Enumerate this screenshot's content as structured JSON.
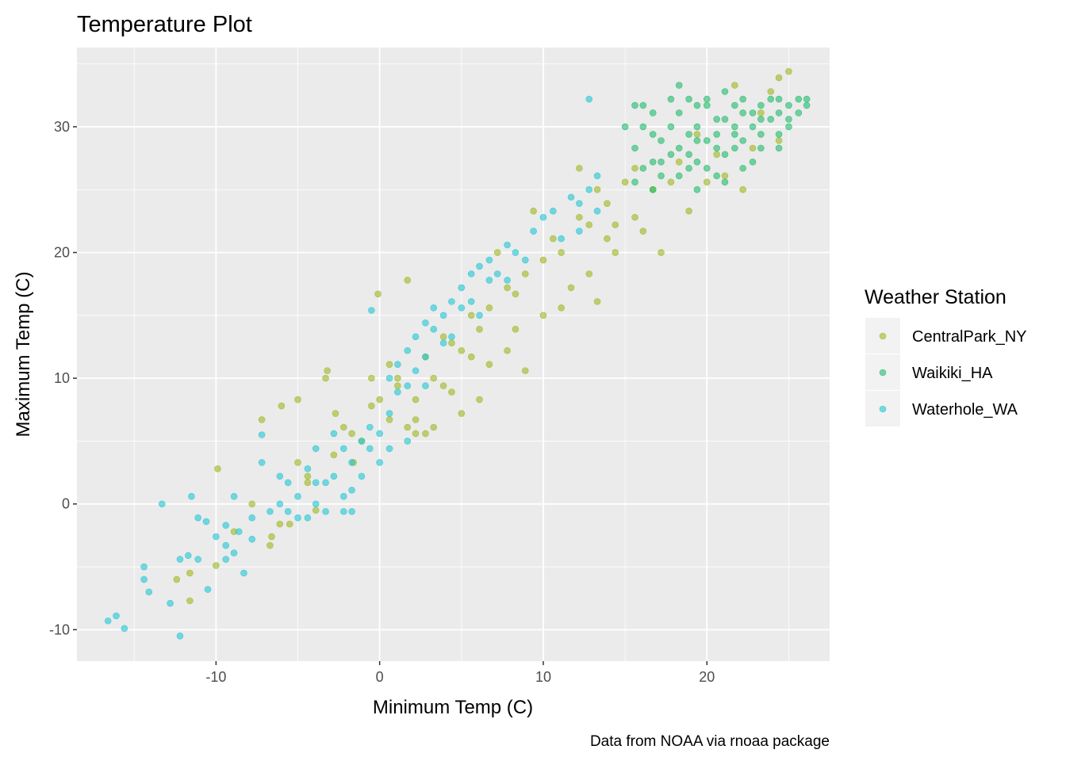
{
  "chart_data": {
    "type": "scatter",
    "title": "Temperature Plot",
    "xlabel": "Minimum Temp (C)",
    "ylabel": "Maximum Temp (C)",
    "caption": "Data from NOAA via rnoaa package",
    "xlim": [
      -18.5,
      27.5
    ],
    "ylim": [
      -12.5,
      36.3
    ],
    "x_ticks": [
      -10,
      0,
      10,
      20
    ],
    "y_ticks": [
      -10,
      0,
      10,
      20,
      30
    ],
    "x_tick_labels": [
      "-10",
      "0",
      "10",
      "20"
    ],
    "y_tick_labels": [
      "-10",
      "0",
      "10",
      "20",
      "30"
    ],
    "grid": true,
    "panel_background": "#ebebeb",
    "legend": {
      "title": "Weather Station",
      "placement": "right",
      "entries": [
        {
          "label": "CentralPark_NY",
          "color": "#9eb51f"
        },
        {
          "label": "Waikiki_HA",
          "color": "#1fba6a"
        },
        {
          "label": "Waterhole_WA",
          "color": "#20c6d4"
        }
      ]
    },
    "series": [
      {
        "name": "CentralPark_NY",
        "color": "#9eb51f",
        "points": [
          [
            -9.9,
            2.8
          ],
          [
            -12.4,
            -6.0
          ],
          [
            -11.6,
            -5.5
          ],
          [
            -11.6,
            -7.7
          ],
          [
            -10.0,
            -4.9
          ],
          [
            -7.2,
            6.7
          ],
          [
            -6.6,
            -2.6
          ],
          [
            -6.1,
            -1.6
          ],
          [
            -6.0,
            7.8
          ],
          [
            -5.5,
            -1.6
          ],
          [
            -5.0,
            8.3
          ],
          [
            -5.0,
            3.3
          ],
          [
            -4.4,
            2.2
          ],
          [
            -3.9,
            -0.5
          ],
          [
            -3.3,
            10.0
          ],
          [
            -3.2,
            10.6
          ],
          [
            -2.7,
            7.2
          ],
          [
            -2.2,
            6.1
          ],
          [
            -1.6,
            3.3
          ],
          [
            -1.1,
            5.0
          ],
          [
            -0.5,
            7.8
          ],
          [
            -0.1,
            16.7
          ],
          [
            0.0,
            8.3
          ],
          [
            0.6,
            11.1
          ],
          [
            1.1,
            10.0
          ],
          [
            1.7,
            17.8
          ],
          [
            1.7,
            6.1
          ],
          [
            2.2,
            6.7
          ],
          [
            2.2,
            8.3
          ],
          [
            2.8,
            11.7
          ],
          [
            2.8,
            5.6
          ],
          [
            3.3,
            10.0
          ],
          [
            3.9,
            13.3
          ],
          [
            3.9,
            9.4
          ],
          [
            4.4,
            8.9
          ],
          [
            5.0,
            12.2
          ],
          [
            5.0,
            7.2
          ],
          [
            5.6,
            15.0
          ],
          [
            5.6,
            11.7
          ],
          [
            6.1,
            8.3
          ],
          [
            6.7,
            15.6
          ],
          [
            6.7,
            11.1
          ],
          [
            7.2,
            20.0
          ],
          [
            7.8,
            17.2
          ],
          [
            7.8,
            12.2
          ],
          [
            8.3,
            13.9
          ],
          [
            8.9,
            18.3
          ],
          [
            8.9,
            10.6
          ],
          [
            9.4,
            23.3
          ],
          [
            10.0,
            15.0
          ],
          [
            10.6,
            21.1
          ],
          [
            11.1,
            20.0
          ],
          [
            11.1,
            15.6
          ],
          [
            11.7,
            17.2
          ],
          [
            12.2,
            26.7
          ],
          [
            12.8,
            22.2
          ],
          [
            12.8,
            18.3
          ],
          [
            13.3,
            25.0
          ],
          [
            13.3,
            16.1
          ],
          [
            13.9,
            23.9
          ],
          [
            13.9,
            21.1
          ],
          [
            14.4,
            22.2
          ],
          [
            15.0,
            25.6
          ],
          [
            15.6,
            22.8
          ],
          [
            16.1,
            21.7
          ],
          [
            16.7,
            25.0
          ],
          [
            17.2,
            20.0
          ],
          [
            17.8,
            25.6
          ],
          [
            18.3,
            27.2
          ],
          [
            18.9,
            23.3
          ],
          [
            19.4,
            29.4
          ],
          [
            20.0,
            25.6
          ],
          [
            20.6,
            27.8
          ],
          [
            21.1,
            26.1
          ],
          [
            21.7,
            33.3
          ],
          [
            22.2,
            25.0
          ],
          [
            22.8,
            28.3
          ],
          [
            23.3,
            31.1
          ],
          [
            23.9,
            32.8
          ],
          [
            24.4,
            33.9
          ],
          [
            25.0,
            34.4
          ],
          [
            24.4,
            28.9
          ],
          [
            15.6,
            26.7
          ],
          [
            14.4,
            20.0
          ],
          [
            12.2,
            22.8
          ],
          [
            10.0,
            19.4
          ],
          [
            8.3,
            16.7
          ],
          [
            6.1,
            13.9
          ],
          [
            4.4,
            12.8
          ],
          [
            3.3,
            6.1
          ],
          [
            2.2,
            5.6
          ],
          [
            1.1,
            9.4
          ],
          [
            0.6,
            6.7
          ],
          [
            -0.5,
            10.0
          ],
          [
            -1.7,
            5.6
          ],
          [
            -2.8,
            3.9
          ],
          [
            -4.4,
            1.7
          ],
          [
            -6.7,
            -3.3
          ],
          [
            -7.8,
            0.0
          ],
          [
            -8.9,
            -2.2
          ]
        ]
      },
      {
        "name": "Waikiki_HA",
        "color": "#1fba6a",
        "points": [
          [
            15.6,
            25.6
          ],
          [
            15.6,
            28.3
          ],
          [
            16.1,
            26.7
          ],
          [
            16.1,
            30.0
          ],
          [
            16.7,
            27.2
          ],
          [
            16.7,
            25.0
          ],
          [
            17.2,
            28.9
          ],
          [
            17.2,
            26.1
          ],
          [
            17.8,
            27.8
          ],
          [
            17.8,
            30.0
          ],
          [
            18.3,
            28.3
          ],
          [
            18.3,
            31.1
          ],
          [
            18.9,
            26.7
          ],
          [
            18.9,
            29.4
          ],
          [
            19.4,
            27.2
          ],
          [
            19.4,
            30.0
          ],
          [
            20.0,
            28.9
          ],
          [
            20.0,
            31.7
          ],
          [
            20.6,
            26.1
          ],
          [
            20.6,
            28.3
          ],
          [
            21.1,
            30.6
          ],
          [
            21.1,
            27.8
          ],
          [
            21.7,
            29.4
          ],
          [
            21.7,
            31.7
          ],
          [
            22.2,
            28.9
          ],
          [
            22.2,
            31.1
          ],
          [
            22.8,
            30.0
          ],
          [
            22.8,
            27.2
          ],
          [
            23.3,
            29.4
          ],
          [
            23.3,
            31.7
          ],
          [
            23.9,
            30.6
          ],
          [
            23.9,
            32.2
          ],
          [
            24.4,
            31.1
          ],
          [
            24.4,
            29.4
          ],
          [
            25.0,
            31.7
          ],
          [
            25.0,
            30.0
          ],
          [
            25.6,
            31.1
          ],
          [
            26.1,
            31.7
          ],
          [
            26.1,
            32.2
          ],
          [
            22.2,
            32.2
          ],
          [
            21.1,
            32.8
          ],
          [
            20.0,
            32.2
          ],
          [
            19.4,
            31.7
          ],
          [
            18.9,
            32.2
          ],
          [
            18.3,
            33.3
          ],
          [
            17.8,
            32.2
          ],
          [
            16.7,
            31.1
          ],
          [
            16.1,
            31.7
          ],
          [
            15.6,
            31.7
          ],
          [
            15.0,
            30.0
          ],
          [
            16.7,
            29.4
          ],
          [
            17.2,
            27.2
          ],
          [
            18.3,
            26.1
          ],
          [
            19.4,
            25.0
          ],
          [
            20.0,
            26.7
          ],
          [
            21.1,
            25.6
          ],
          [
            22.2,
            26.7
          ],
          [
            23.3,
            28.3
          ],
          [
            24.4,
            28.3
          ],
          [
            25.0,
            30.6
          ],
          [
            18.9,
            27.8
          ],
          [
            19.4,
            28.9
          ],
          [
            20.6,
            29.4
          ],
          [
            21.7,
            30.0
          ],
          [
            22.8,
            31.1
          ],
          [
            23.3,
            30.6
          ],
          [
            24.4,
            32.2
          ],
          [
            25.6,
            32.2
          ],
          [
            20.6,
            30.6
          ],
          [
            21.7,
            28.3
          ]
        ]
      },
      {
        "name": "Waterhole_WA",
        "color": "#20c6d4",
        "points": [
          [
            -16.6,
            -9.3
          ],
          [
            -16.1,
            -8.9
          ],
          [
            -15.6,
            -9.9
          ],
          [
            -14.4,
            -5.0
          ],
          [
            -14.4,
            -6.0
          ],
          [
            -14.1,
            -7.0
          ],
          [
            -13.3,
            0.0
          ],
          [
            -12.8,
            -7.9
          ],
          [
            -12.2,
            -10.5
          ],
          [
            -12.2,
            -4.4
          ],
          [
            -11.7,
            -4.1
          ],
          [
            -11.5,
            0.6
          ],
          [
            -11.1,
            -1.1
          ],
          [
            -11.1,
            -4.4
          ],
          [
            -10.6,
            -1.4
          ],
          [
            -10.5,
            -6.8
          ],
          [
            -10.0,
            -2.6
          ],
          [
            -9.4,
            -3.3
          ],
          [
            -9.4,
            -4.4
          ],
          [
            -8.9,
            0.6
          ],
          [
            -8.6,
            -2.2
          ],
          [
            -8.3,
            -5.5
          ],
          [
            -7.8,
            -1.1
          ],
          [
            -7.2,
            3.3
          ],
          [
            -7.2,
            5.5
          ],
          [
            -6.7,
            -0.6
          ],
          [
            -6.1,
            2.2
          ],
          [
            -5.6,
            1.7
          ],
          [
            -5.0,
            0.6
          ],
          [
            -5.0,
            -1.1
          ],
          [
            -4.4,
            2.8
          ],
          [
            -3.9,
            0.0
          ],
          [
            -3.9,
            4.4
          ],
          [
            -3.3,
            -0.6
          ],
          [
            -3.3,
            1.7
          ],
          [
            -2.8,
            5.6
          ],
          [
            -2.8,
            2.2
          ],
          [
            -2.2,
            0.6
          ],
          [
            -2.2,
            -0.6
          ],
          [
            -1.7,
            3.3
          ],
          [
            -1.7,
            1.1
          ],
          [
            -1.1,
            5.0
          ],
          [
            -1.1,
            2.2
          ],
          [
            -0.6,
            4.4
          ],
          [
            -0.6,
            6.1
          ],
          [
            0.0,
            5.6
          ],
          [
            0.0,
            3.3
          ],
          [
            0.6,
            10.0
          ],
          [
            0.6,
            7.2
          ],
          [
            1.1,
            8.9
          ],
          [
            1.1,
            11.1
          ],
          [
            1.7,
            9.4
          ],
          [
            1.7,
            12.2
          ],
          [
            2.2,
            13.3
          ],
          [
            2.2,
            10.6
          ],
          [
            2.8,
            14.4
          ],
          [
            2.8,
            11.7
          ],
          [
            3.3,
            13.9
          ],
          [
            3.3,
            15.6
          ],
          [
            3.9,
            12.8
          ],
          [
            3.9,
            15.0
          ],
          [
            4.4,
            16.1
          ],
          [
            4.4,
            13.3
          ],
          [
            5.0,
            17.2
          ],
          [
            5.0,
            15.6
          ],
          [
            5.6,
            18.3
          ],
          [
            5.6,
            16.1
          ],
          [
            6.1,
            18.9
          ],
          [
            6.1,
            15.0
          ],
          [
            6.7,
            17.8
          ],
          [
            6.7,
            19.4
          ],
          [
            7.2,
            18.3
          ],
          [
            7.8,
            20.6
          ],
          [
            7.8,
            17.8
          ],
          [
            8.3,
            20.0
          ],
          [
            8.9,
            19.4
          ],
          [
            9.4,
            21.7
          ],
          [
            10.0,
            22.8
          ],
          [
            10.6,
            23.3
          ],
          [
            11.1,
            21.1
          ],
          [
            11.7,
            24.4
          ],
          [
            12.2,
            23.9
          ],
          [
            12.2,
            21.7
          ],
          [
            12.8,
            25.0
          ],
          [
            13.3,
            26.1
          ],
          [
            13.3,
            23.3
          ],
          [
            12.8,
            32.2
          ],
          [
            -0.5,
            15.4
          ],
          [
            -2.2,
            4.4
          ],
          [
            -1.7,
            -0.6
          ],
          [
            -3.9,
            1.7
          ],
          [
            -4.4,
            -1.1
          ],
          [
            -5.6,
            -0.6
          ],
          [
            -6.1,
            0.0
          ],
          [
            -7.8,
            -2.8
          ],
          [
            -8.9,
            -3.9
          ],
          [
            -9.4,
            -1.7
          ],
          [
            0.6,
            4.4
          ],
          [
            1.7,
            5.0
          ],
          [
            2.8,
            9.4
          ]
        ]
      }
    ]
  }
}
